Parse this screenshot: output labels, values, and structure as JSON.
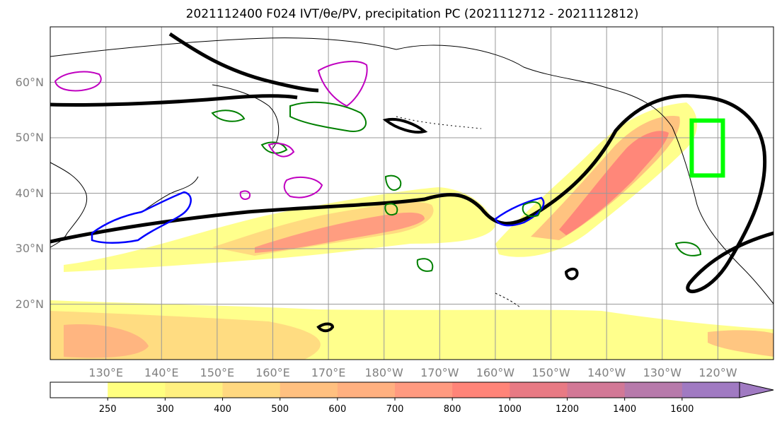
{
  "title": "2021112400 F024 IVT/θe/PV, precipitation PC (2021112712 - 2021112812)",
  "chart_data": {
    "type": "heatmap",
    "title": "2021112400 F024 IVT/θe/PV, precipitation PC (2021112712 - 2021112812)",
    "projection": "PlateCarree",
    "lon_range_E": [
      120,
      250
    ],
    "lat_range": [
      10,
      70
    ],
    "lat_ticks": [
      "20°N",
      "30°N",
      "40°N",
      "50°N",
      "60°N"
    ],
    "lat_tick_values": [
      20,
      30,
      40,
      50,
      60
    ],
    "lon_ticks": [
      "130°E",
      "140°E",
      "150°E",
      "160°E",
      "170°E",
      "180°W",
      "170°W",
      "160°W",
      "150°W",
      "140°W",
      "130°W",
      "120°W"
    ],
    "lon_tick_values": [
      130,
      140,
      150,
      160,
      170,
      180,
      190,
      200,
      210,
      220,
      230,
      240
    ],
    "grid": true,
    "colorbar": {
      "levels": [
        250,
        300,
        400,
        500,
        600,
        700,
        800,
        1000,
        1200,
        1400,
        1600
      ],
      "colors": [
        "#ffffff",
        "#ffff80",
        "#fff080",
        "#ffd880",
        "#ffc080",
        "#ffb080",
        "#ff9a80",
        "#ff8478",
        "#e87a84",
        "#d27896",
        "#b77aab",
        "#a07ac2"
      ],
      "extend": "max"
    },
    "contour_colors": {
      "theta_e": "#000000",
      "pv_positive": "#008000",
      "pv_negative": "#0000ff",
      "pv_other": "#c000c0",
      "target_box": "#00ff00"
    },
    "target_box_lon_lat": [
      [
        235.3,
        43.2
      ],
      [
        240.9,
        53.1
      ]
    ]
  }
}
